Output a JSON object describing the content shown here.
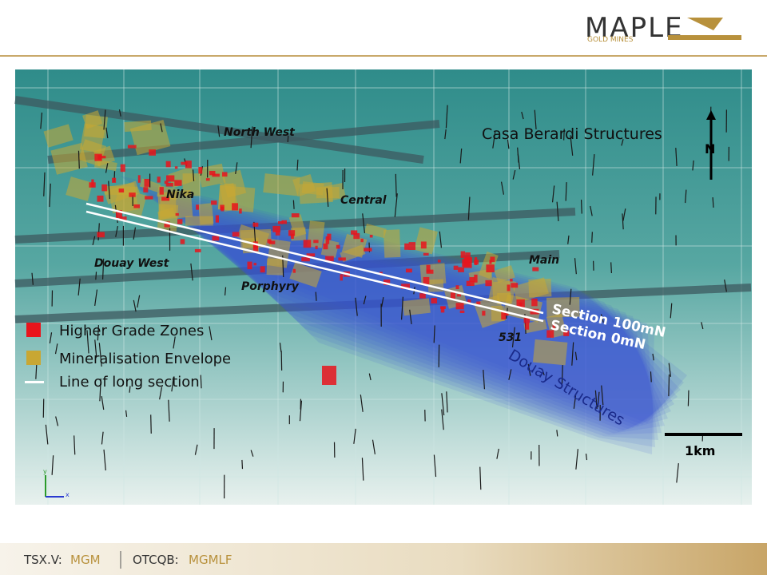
{
  "header": {
    "logo": {
      "name": "MAPLE",
      "tagline": "GOLD MINES"
    }
  },
  "map": {
    "structures_title": "Casa Berardi Structures",
    "north": "N",
    "zones": [
      "North West",
      "Nika",
      "Central",
      "Douay West",
      "Porphyry",
      "Main",
      "531"
    ],
    "sections": [
      "Section 100mN",
      "Section 0mN"
    ],
    "douay": "Douay Structures",
    "scale": "1km",
    "axes": [
      "y",
      "x"
    ]
  },
  "legend": {
    "items": [
      "Higher Grade Zones",
      "Mineralisation Envelope",
      "Line of long section"
    ]
  },
  "footer": {
    "exchanges": [
      {
        "name": "TSX.V:",
        "ticker": "MGM"
      },
      {
        "name": "OTCQB:",
        "ticker": "MGMLF"
      }
    ]
  }
}
